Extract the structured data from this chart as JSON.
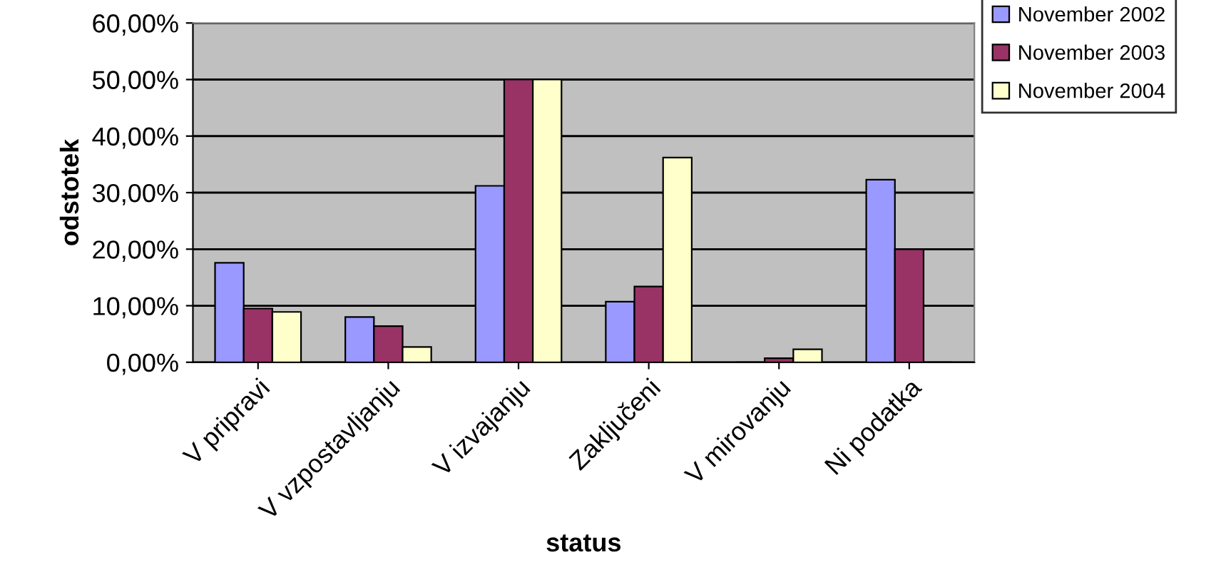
{
  "chart_data": {
    "type": "bar",
    "xlabel": "status",
    "ylabel": "odstotek",
    "categories": [
      "V pripravi",
      "V vzpostavljanju",
      "V izvajanju",
      "Zaključeni",
      "V mirovanju",
      "Ni podatka"
    ],
    "series": [
      {
        "name": "November 2002",
        "color": "#9999ff",
        "values": [
          17.6,
          8.0,
          31.2,
          10.7,
          0,
          32.3
        ]
      },
      {
        "name": "November 2003",
        "color": "#993366",
        "values": [
          9.5,
          6.4,
          50,
          13.4,
          0.7,
          20
        ]
      },
      {
        "name": "November 2004",
        "color": "#ffffcc",
        "values": [
          8.9,
          2.7,
          50,
          36.2,
          2.3,
          0
        ]
      }
    ],
    "ylim": [
      0,
      60
    ],
    "yticks": [
      {
        "value": 0,
        "label": "0,00%"
      },
      {
        "value": 10,
        "label": "10,00%"
      },
      {
        "value": 20,
        "label": "20,00%"
      },
      {
        "value": 30,
        "label": "30,00%"
      },
      {
        "value": 40,
        "label": "40,00%"
      },
      {
        "value": 50,
        "label": "50,00%"
      },
      {
        "value": 60,
        "label": "60,00%"
      }
    ],
    "grid": "y",
    "legend": "top right"
  }
}
